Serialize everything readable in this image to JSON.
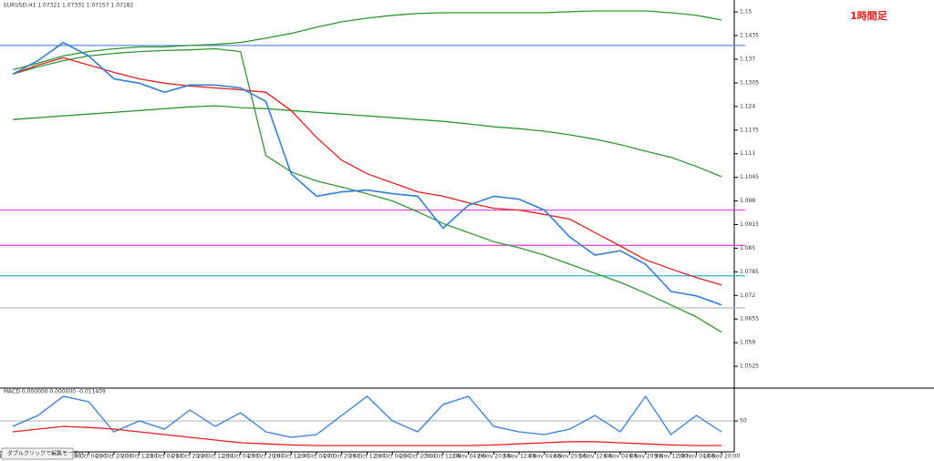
{
  "chart_data": [
    {
      "type": "line",
      "header": "EURUSD,H1 1.07321 1.07331 1.07157 1.07182",
      "title": "1時間足",
      "categories": [
        "14 Oct 04:00",
        "15 Oct 20:00",
        "16 Oct 12:00",
        "19 Oct 04:00",
        "19 Oct 20:00",
        "20 Oct 12:00",
        "21 Oct 04:00",
        "21 Oct 20:00",
        "22 Oct 12:00",
        "23 Oct 04:00",
        "23 Oct 20:00",
        "26 Oct 12:00",
        "27 Oct 04:00",
        "27 Oct 20:00",
        "28 Oct 12:00",
        "29 Oct 04:00",
        "29 Oct 20:00",
        "30 Oct 12:00",
        "2 Nov 04:00",
        "2 Nov 20:00",
        "3 Nov 12:00",
        "4 Nov 04:00",
        "4 Nov 20:00",
        "5 Nov 12:00",
        "6 Nov 04:00",
        "6 Nov 20:00",
        "9 Nov 12:00",
        "10 Nov 04:00",
        "10 Nov 20:00"
      ],
      "series": [
        {
          "color": "#2e9a2e",
          "values": [
            1.1341,
            1.1359,
            1.1379,
            1.1391,
            1.1399,
            1.1404,
            1.1404,
            1.1408,
            1.1411,
            1.1416,
            1.1428,
            1.1441,
            1.1458,
            1.1473,
            1.1483,
            1.1491,
            1.1496,
            1.1498,
            1.1498,
            1.1498,
            1.1498,
            1.1498,
            1.1501,
            1.1503,
            1.1503,
            1.1503,
            1.1498,
            1.1491,
            1.1478
          ]
        },
        {
          "color": "#2e9a2e",
          "values": [
            1.1204,
            1.1209,
            1.1214,
            1.1219,
            1.1224,
            1.1229,
            1.1234,
            1.1239,
            1.1242,
            1.1237,
            1.1234,
            1.1229,
            1.1224,
            1.1219,
            1.1214,
            1.1209,
            1.1204,
            1.1199,
            1.1192,
            1.1184,
            1.1179,
            1.1172,
            1.1162,
            1.115,
            1.1135,
            1.1117,
            1.11,
            1.1075,
            1.1047
          ]
        },
        {
          "color": "#2e9a2e",
          "values": [
            1.1329,
            1.1349,
            1.1366,
            1.1379,
            1.1386,
            1.1391,
            1.1394,
            1.1396,
            1.1399,
            1.1391,
            1.1105,
            1.106,
            1.1035,
            1.1018,
            1.1,
            1.098,
            1.095,
            1.0918,
            1.0893,
            1.0868,
            1.0851,
            1.0831,
            1.0806,
            1.0781,
            1.0756,
            1.0726,
            1.0694,
            1.0661,
            1.0619
          ]
        },
        {
          "color": "#e8201c",
          "values": [
            1.1329,
            1.1354,
            1.1374,
            1.1354,
            1.1334,
            1.1316,
            1.1304,
            1.1296,
            1.1291,
            1.1286,
            1.1279,
            1.1229,
            1.1155,
            1.1092,
            1.1055,
            1.103,
            1.1005,
            1.0993,
            1.0975,
            1.096,
            1.0955,
            1.0943,
            1.093,
            1.0893,
            1.0856,
            1.0818,
            1.0793,
            1.0769,
            1.0749
          ]
        },
        {
          "color": "#2f7fe0",
          "values": [
            1.1329,
            1.1366,
            1.1416,
            1.1379,
            1.1316,
            1.1304,
            1.1279,
            1.1299,
            1.1299,
            1.1291,
            1.1254,
            1.1055,
            1.0993,
            1.1005,
            1.101,
            1.1,
            1.0993,
            1.0905,
            1.0968,
            1.0993,
            1.0985,
            1.0955,
            1.0881,
            1.0831,
            1.0843,
            1.0806,
            1.0731,
            1.0719,
            1.0694
          ]
        }
      ],
      "levels": [
        {
          "value": 1.1408,
          "color": "#5b8fe6"
        },
        {
          "value": 1.0955,
          "color": "#e040e0"
        },
        {
          "value": 1.0858,
          "color": "#e040e0"
        },
        {
          "value": 1.0774,
          "color": "#30b0e0"
        },
        {
          "value": 1.0686,
          "color": "#bbbbbb"
        }
      ],
      "ylim": [
        1.047,
        1.1528
      ],
      "yticks": [
        1.15,
        1.1435,
        1.137,
        1.1305,
        1.124,
        1.1175,
        1.111,
        1.1045,
        1.098,
        1.0915,
        1.085,
        1.0785,
        1.072,
        1.0655,
        1.059,
        1.0525
      ]
    },
    {
      "type": "line",
      "label": "MACD 0.000000 0.000000 -0.011409",
      "series": [
        {
          "color": "#2f7fe0",
          "values": [
            40,
            60,
            95,
            85,
            30,
            50,
            35,
            70,
            40,
            65,
            30,
            20,
            25,
            60,
            95,
            50,
            30,
            80,
            95,
            40,
            30,
            25,
            35,
            60,
            30,
            95,
            25,
            60,
            30
          ]
        },
        {
          "color": "#e8201c",
          "values": [
            30,
            35,
            40,
            38,
            35,
            30,
            25,
            20,
            15,
            10,
            8,
            6,
            5,
            5,
            5,
            5,
            5,
            5,
            5,
            6,
            8,
            10,
            12,
            12,
            10,
            8,
            6,
            5,
            5
          ]
        }
      ],
      "ylim": [
        0,
        100
      ],
      "yticks": [
        50
      ]
    }
  ],
  "tooltip": "ダブルクリックで編集モードへ"
}
